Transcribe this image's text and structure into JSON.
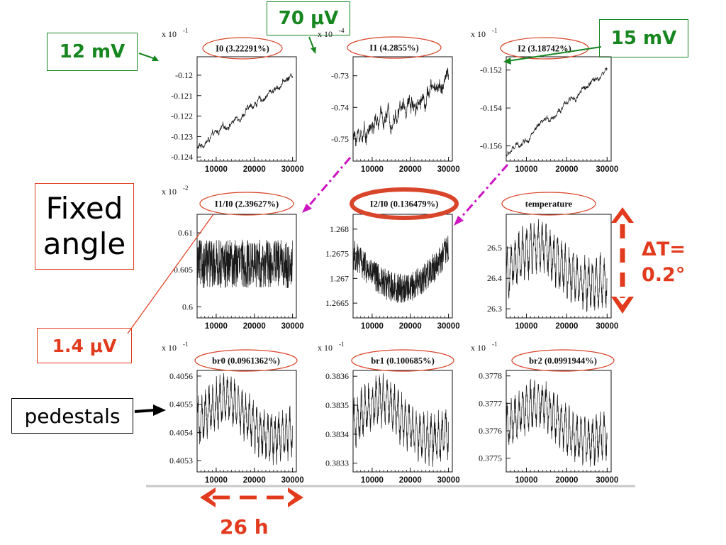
{
  "colors": {
    "green": "#16861f",
    "red": "#e23a1d",
    "magenta": "#cc14c0",
    "oval": "#d9452a"
  },
  "callouts": {
    "seventy_uv": "70 μV",
    "twelve_mv": "12 mV",
    "fifteen_mv": "15 mV",
    "fixed_angle_1": "Fixed",
    "fixed_angle_2": "angle",
    "one_four_uv": "1.4 μV",
    "pedestals": "pedestals",
    "delta_t_1": "ΔT=",
    "delta_t_2": "0.2°",
    "hours": "26 h"
  },
  "chart_data": [
    {
      "id": "I0",
      "type": "line",
      "title": "I0 (3.22291%)",
      "multiplier": "x 10 -1",
      "xlim": [
        5000,
        31000
      ],
      "ylim": [
        -0.1242,
        -0.1191
      ],
      "xticks": [
        "10000",
        "20000",
        "30000"
      ],
      "yticks": [
        "-0.12",
        "-0.121",
        "-0.122",
        "-0.123",
        "-0.124"
      ],
      "x": [
        5000,
        30000
      ],
      "shape": "rising",
      "y_start": -0.1236,
      "y_end": -0.12,
      "noise": 0.00012
    },
    {
      "id": "I1",
      "type": "line",
      "title": "I1 (4.2855%)",
      "multiplier": "x 10 -4",
      "xlim": [
        5000,
        31000
      ],
      "ylim": [
        -0.757,
        -0.724
      ],
      "xticks": [
        "10000",
        "20000",
        "30000"
      ],
      "yticks": [
        "-0.73",
        "-0.74",
        "-0.75"
      ],
      "x": [
        5000,
        30000
      ],
      "shape": "rising",
      "y_start": -0.75,
      "y_end": -0.731,
      "noise": 0.0022
    },
    {
      "id": "I2",
      "type": "line",
      "title": "I2 (3.18742%)",
      "multiplier": "x 10 -1",
      "xlim": [
        5000,
        31000
      ],
      "ylim": [
        -0.1568,
        -0.1513
      ],
      "xticks": [
        "10000",
        "20000",
        "30000"
      ],
      "yticks": [
        "-0.152",
        "-0.154",
        "-0.156"
      ],
      "x": [
        5000,
        30000
      ],
      "shape": "rising",
      "y_start": -0.1565,
      "y_end": -0.152,
      "noise": 0.00012
    },
    {
      "id": "I1/I0",
      "type": "line",
      "title": "I1/I0 (2.39627%)",
      "multiplier": "x 10 -2",
      "xlim": [
        5000,
        31000
      ],
      "ylim": [
        0.5985,
        0.6125
      ],
      "xticks": [
        "10000",
        "20000",
        "30000"
      ],
      "yticks": [
        "0.61",
        "0.605",
        "0.6"
      ],
      "x": [
        5000,
        30000
      ],
      "shape": "flat",
      "y_start": 0.6058,
      "y_end": 0.6058,
      "noise": 0.0025
    },
    {
      "id": "I2/I0",
      "type": "line",
      "title": "I2/I0 (0.136479%)",
      "multiplier": "",
      "xlim": [
        5000,
        31000
      ],
      "ylim": [
        1.2662,
        1.2683
      ],
      "xticks": [
        "10000",
        "20000",
        "30000"
      ],
      "yticks": [
        "1.268",
        "1.2675",
        "1.267",
        "1.2665"
      ],
      "x": [
        5000,
        30000
      ],
      "shape": "valley",
      "y_start": 1.2675,
      "y_end": 1.2676,
      "y_min": 1.2668,
      "noise": 0.00028
    },
    {
      "id": "temperature",
      "type": "line",
      "title": "temperature",
      "multiplier": "",
      "xlim": [
        5000,
        31000
      ],
      "ylim": [
        26.27,
        26.61
      ],
      "xticks": [
        "10000",
        "20000",
        "30000"
      ],
      "yticks": [
        "26.5",
        "26.4",
        "26.3"
      ],
      "x": [
        5000,
        30000
      ],
      "shape": "hump",
      "y_start": 26.41,
      "y_peak": 26.51,
      "y_end": 26.38,
      "noise": 0.05
    },
    {
      "id": "br0",
      "type": "line",
      "title": "br0 (0.0961362%)",
      "multiplier": "x 10 -1",
      "xlim": [
        5000,
        31000
      ],
      "ylim": [
        0.40526,
        0.40562
      ],
      "xticks": [
        "10000",
        "20000",
        "30000"
      ],
      "yticks": [
        "0.4056",
        "0.4055",
        "0.4054",
        "0.4053"
      ],
      "x": [
        5000,
        30000
      ],
      "shape": "hump",
      "y_start": 0.40543,
      "y_peak": 0.40552,
      "y_end": 0.40538,
      "noise": 5e-05
    },
    {
      "id": "br1",
      "type": "line",
      "title": "br1 (0.100685%)",
      "multiplier": "x 10 -1",
      "xlim": [
        5000,
        31000
      ],
      "ylim": [
        0.38327,
        0.38362
      ],
      "xticks": [
        "10000",
        "20000",
        "30000"
      ],
      "yticks": [
        "0.3836",
        "0.3835",
        "0.3834",
        "0.3833"
      ],
      "x": [
        5000,
        30000
      ],
      "shape": "hump",
      "y_start": 0.38343,
      "y_peak": 0.38352,
      "y_end": 0.38338,
      "noise": 5e-05
    },
    {
      "id": "br2",
      "type": "line",
      "title": "br2 (0.0991944%)",
      "multiplier": "x 10 -1",
      "xlim": [
        5000,
        31000
      ],
      "ylim": [
        0.37745,
        0.37782
      ],
      "xticks": [
        "10000",
        "20000",
        "30000"
      ],
      "yticks": [
        "0.3778",
        "0.3777",
        "0.3776",
        "0.3775"
      ],
      "x": [
        5000,
        30000
      ],
      "shape": "hump",
      "y_start": 0.37761,
      "y_peak": 0.3777,
      "y_end": 0.37756,
      "noise": 5e-05
    }
  ]
}
